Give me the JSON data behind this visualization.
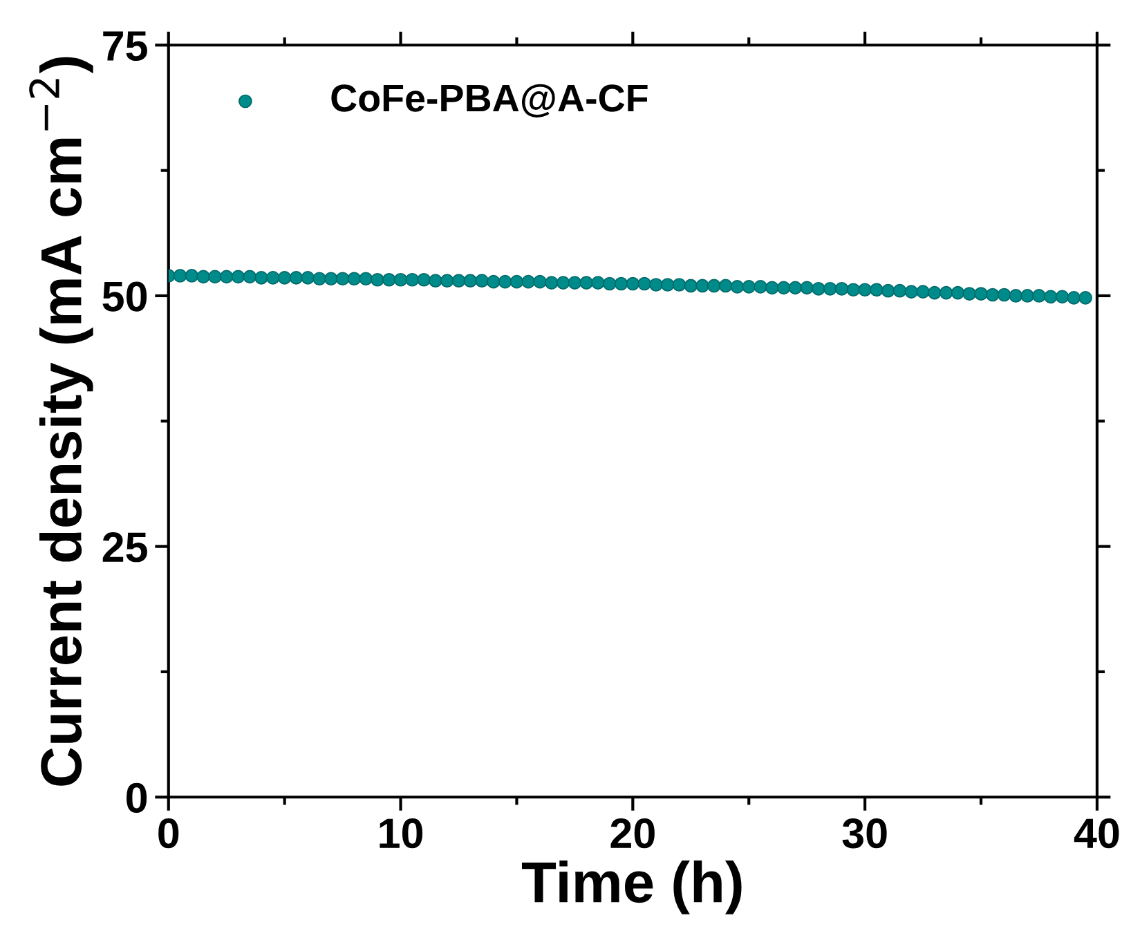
{
  "chart_data": {
    "type": "scatter",
    "xlabel": "Time (h)",
    "ylabel": "Current density (mA cm$^{−2}$)",
    "xlim": [
      0,
      40
    ],
    "ylim": [
      0,
      75
    ],
    "xticks": [
      0,
      10,
      20,
      30,
      40
    ],
    "yticks": [
      0,
      25,
      50,
      75
    ],
    "grid": false,
    "legend": "top left",
    "marker": "circle",
    "series": [
      {
        "name": "CoFe-PBA@A-CF",
        "color": "#008b8b",
        "x": [
          0,
          0.5,
          1,
          1.5,
          2,
          2.5,
          3,
          3.5,
          4,
          4.5,
          5,
          5.5,
          6,
          6.5,
          7,
          7.5,
          8,
          8.5,
          9,
          9.5,
          10,
          10.5,
          11,
          11.5,
          12,
          12.5,
          13,
          13.5,
          14,
          14.5,
          15,
          15.5,
          16,
          16.5,
          17,
          17.5,
          18,
          18.5,
          19,
          19.5,
          20,
          20.5,
          21,
          21.5,
          22,
          22.5,
          23,
          23.5,
          24,
          24.5,
          25,
          25.5,
          26,
          26.5,
          27,
          27.5,
          28,
          28.5,
          29,
          29.5,
          30,
          30.5,
          31,
          31.5,
          32,
          32.5,
          33,
          33.5,
          34,
          34.5,
          35,
          35.5,
          36,
          36.5,
          37,
          37.5,
          38,
          38.5,
          39,
          39.5
        ],
        "values": [
          52.0,
          52.0,
          52.0,
          51.9,
          51.9,
          51.9,
          51.9,
          51.9,
          51.8,
          51.8,
          51.8,
          51.8,
          51.8,
          51.7,
          51.7,
          51.7,
          51.7,
          51.7,
          51.6,
          51.6,
          51.6,
          51.6,
          51.6,
          51.5,
          51.5,
          51.5,
          51.5,
          51.5,
          51.4,
          51.4,
          51.4,
          51.4,
          51.4,
          51.3,
          51.3,
          51.3,
          51.3,
          51.3,
          51.2,
          51.2,
          51.2,
          51.2,
          51.1,
          51.1,
          51.1,
          51.0,
          51.0,
          51.0,
          51.0,
          50.9,
          50.9,
          50.9,
          50.8,
          50.8,
          50.8,
          50.8,
          50.7,
          50.7,
          50.7,
          50.6,
          50.6,
          50.6,
          50.5,
          50.5,
          50.4,
          50.4,
          50.3,
          50.3,
          50.3,
          50.2,
          50.2,
          50.1,
          50.1,
          50.0,
          50.0,
          50.0,
          49.9,
          49.9,
          49.8,
          49.8
        ]
      }
    ]
  }
}
